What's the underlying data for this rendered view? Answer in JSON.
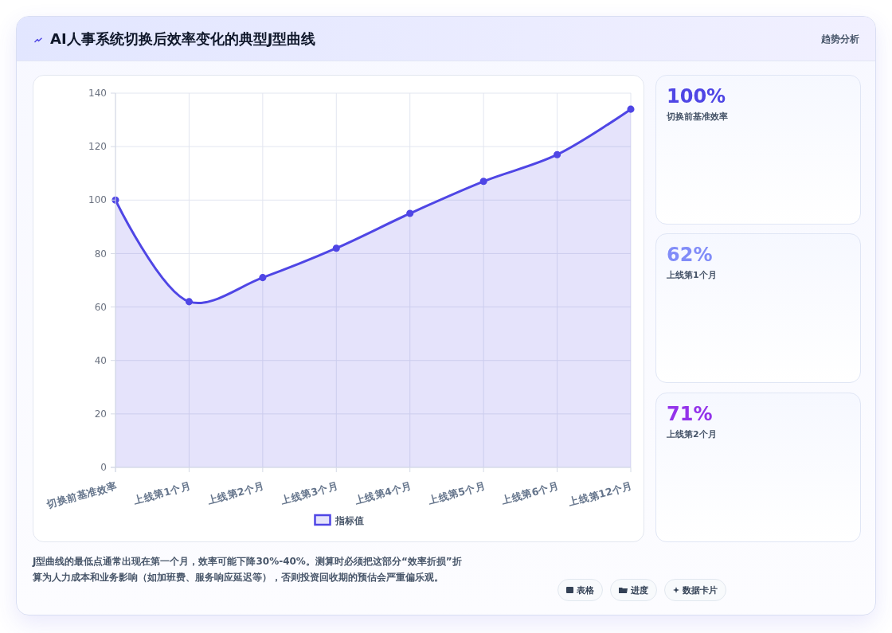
{
  "chart_data": [
    {
      "type": "area",
      "title": "AI人事系统切换后效率变化的典型J型曲线",
      "categories": [
        "切换前基准效率",
        "上线第1个月",
        "上线第2个月",
        "上线第3个月",
        "上线第4个月",
        "上线第5个月",
        "上线第6个月",
        "上线第12个月"
      ],
      "series": [
        {
          "name": "指标值",
          "color": "#4f46e5",
          "values": [
            100,
            62,
            71,
            82,
            95,
            107,
            117,
            134
          ]
        }
      ],
      "ylim": [
        0,
        140
      ],
      "yticks": [
        0,
        20,
        40,
        60,
        80,
        100,
        120,
        140
      ],
      "grid": true,
      "legend": "bottom",
      "marker": "circle",
      "annotations": [
        "趋势分析",
        "J型曲线的最低点通常出现在第一个月，效率可能下降30%-40%。测算时必须把这部分“效率折损”折算为人力成本和业务影响（如加班费、服务响应延迟等），否则投资回收期的预估会严重偏乐观。",
        "表格",
        "进度",
        "数据卡片"
      ]
    },
    {
      "type": "other",
      "title": "100%",
      "subtitle": "切换前基准效率",
      "color": "#4f46e5"
    },
    {
      "type": "other",
      "title": "62%",
      "subtitle": "上线第1个月",
      "color": "#818cf8"
    },
    {
      "type": "other",
      "title": "71%",
      "subtitle": "上线第2个月",
      "color": "#9333ea"
    }
  ]
}
